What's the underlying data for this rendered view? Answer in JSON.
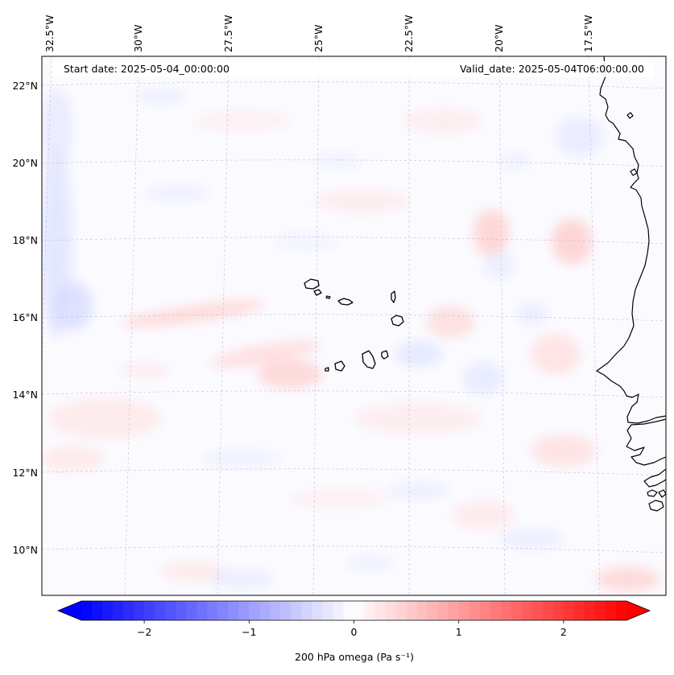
{
  "map": {
    "projection": "lambert-conformal",
    "extent": {
      "lon_min": -33.0,
      "lon_max": -15.5,
      "lat_min": 8.8,
      "lat_max": 22.8
    },
    "gridlines": "dashed",
    "lon_labels": [
      "32.5°W",
      "30°W",
      "27.5°W",
      "25°W",
      "22.5°W",
      "20°W",
      "17.5°W"
    ],
    "lat_labels": [
      "22°N",
      "20°N",
      "18°N",
      "16°N",
      "14°N",
      "12°N",
      "10°N"
    ],
    "field": "200 hPa omega",
    "field_pattern": "weak mixed positive/negative values, mostly near zero"
  },
  "info": {
    "start_date": "Start date: 2025-05-04_00:00:00",
    "valid_date": "Valid_date: 2025-05-04T06:00:00.00"
  },
  "colorbar": {
    "label": "200 hPa omega (Pa s⁻¹)",
    "ticks": [
      "−2",
      "−1",
      "0",
      "1",
      "2"
    ],
    "tick_values": [
      -2,
      -1,
      0,
      1,
      2
    ],
    "range": [
      -2.6,
      2.6
    ],
    "colormap": "bwr",
    "extend": "both",
    "color_min": "#0000ff",
    "color_mid": "#ffffff",
    "color_max": "#ff0000"
  }
}
